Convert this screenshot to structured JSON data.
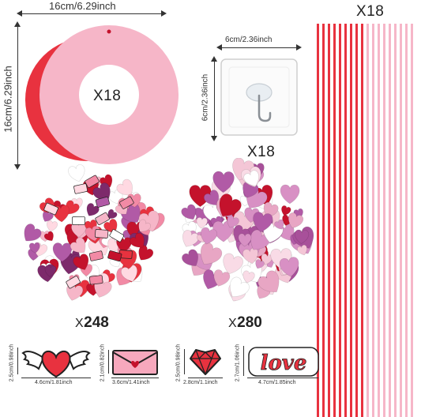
{
  "colors": {
    "red": "#e8323f",
    "pink": "#f6b6c8",
    "light_pink": "#fbd3dd",
    "purple": "#b15aa6",
    "dark_red": "#c4122c"
  },
  "wreath_ring": {
    "width_label": "16cm/6.29inch",
    "height_label": "16cm/6.29inch",
    "quantity": "X18"
  },
  "hook": {
    "width_label": "6cm/2.36inch",
    "height_label": "6cm/2.36inch",
    "quantity": "X18"
  },
  "ribbons": {
    "quantity": "X18"
  },
  "sticker_pile_1": {
    "quantity_prefix": "X",
    "quantity_value": "248"
  },
  "sticker_pile_2": {
    "quantity_prefix": "X",
    "quantity_value": "280"
  },
  "sticker_samples": [
    {
      "name": "winged-heart",
      "width_label": "4.6cm/1.81inch",
      "height_label": "2.5cm/0.98inch"
    },
    {
      "name": "envelope",
      "width_label": "3.6cm/1.41inch",
      "height_label": "2.1cm/0.82inch"
    },
    {
      "name": "gem-heart",
      "width_label": "2.8cm/1.1inch",
      "height_label": "2.5cm/0.98inch"
    },
    {
      "name": "love-word",
      "width_label": "4.7cm/1.85inch",
      "height_label": "2.7cm/1.06inch",
      "word": "love"
    }
  ]
}
